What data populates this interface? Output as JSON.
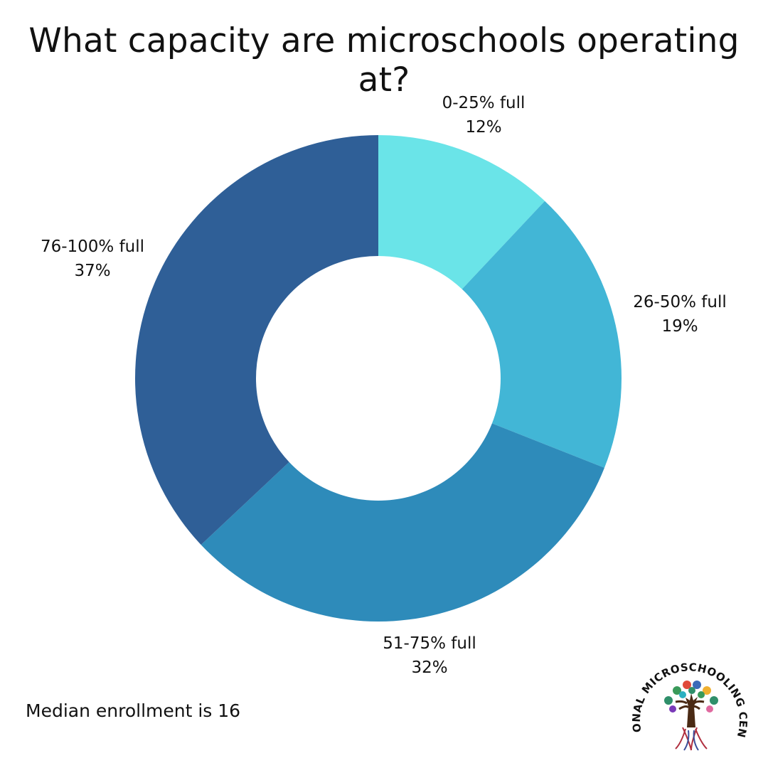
{
  "title": "What capacity are microschools operating at?",
  "footnote": "Median enrollment is 16",
  "logo": {
    "text": "NATIONAL MICROSCHOOLING CENTER",
    "icon": "tree-logo-icon"
  },
  "chart_data": {
    "type": "pie",
    "style": "donut",
    "title": "What capacity are microschools operating at?",
    "slices": [
      {
        "label": "0-25% full",
        "value": 12,
        "value_label": "12%",
        "color": "#6ae4e8"
      },
      {
        "label": "26-50% full",
        "value": 19,
        "value_label": "19%",
        "color": "#42b6d6"
      },
      {
        "label": "51-75% full",
        "value": 32,
        "value_label": "32%",
        "color": "#2e8bba"
      },
      {
        "label": "76-100% full",
        "value": 37,
        "value_label": "37%",
        "color": "#2f5f97"
      }
    ],
    "start_angle": "top, clockwise",
    "legend": "none, direct labels"
  }
}
